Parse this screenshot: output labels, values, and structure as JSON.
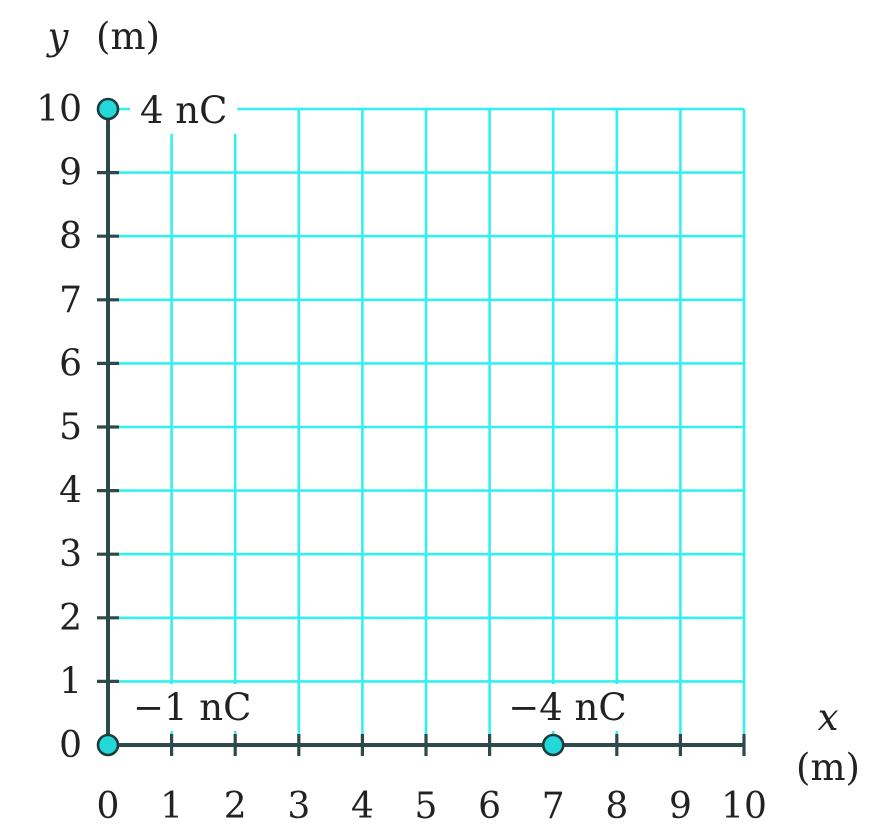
{
  "diagram": {
    "y_axis_label": {
      "symbol": "y",
      "unit": "(m)"
    },
    "x_axis_label": {
      "symbol": "x",
      "unit": "(m)"
    },
    "x_range": [
      0,
      10
    ],
    "y_range": [
      0,
      10
    ],
    "x_ticks": [
      "0",
      "1",
      "2",
      "3",
      "4",
      "5",
      "6",
      "7",
      "8",
      "9",
      "10"
    ],
    "y_ticks": [
      "0",
      "1",
      "2",
      "3",
      "4",
      "5",
      "6",
      "7",
      "8",
      "9",
      "10"
    ],
    "grid": true,
    "charges": [
      {
        "x": 0,
        "y": 10,
        "label": "4 nC"
      },
      {
        "x": 0,
        "y": 0,
        "label": "−1 nC"
      },
      {
        "x": 7,
        "y": 0,
        "label": "−4 nC"
      }
    ],
    "colors": {
      "grid": "#33f0f0",
      "axis": "#2d4a4a",
      "charge_fill": "#22d8d8",
      "charge_stroke": "#1f3c3c",
      "text": "#222222"
    }
  }
}
